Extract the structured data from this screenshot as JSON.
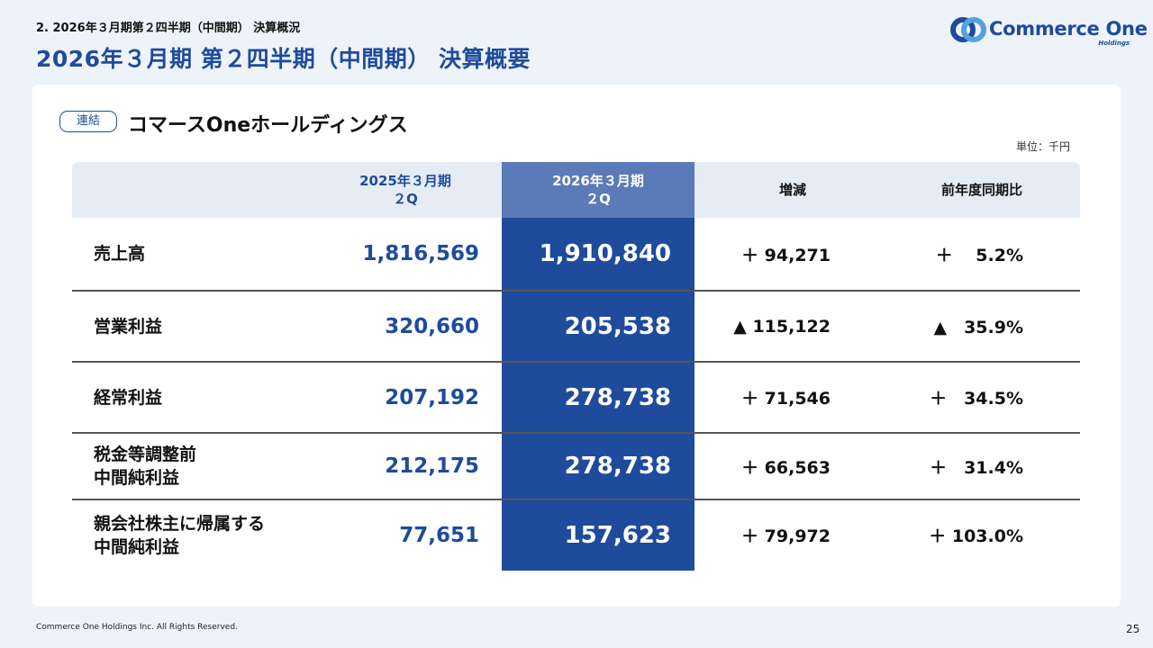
{
  "header": {
    "breadcrumb": "2. 2026年３月期第２四半期（中間期） 決算概況",
    "title": "2026年３月期 第２四半期（中間期） 決算概要",
    "logo_text": "Commerce One",
    "logo_sub": "Holdings"
  },
  "section": {
    "badge": "連結",
    "company": "コマースOneホールディングス",
    "unit": "単位：千円"
  },
  "table": {
    "headers": {
      "prev": [
        "2025年３月期",
        "２Q"
      ],
      "cur": [
        "2026年３月期",
        "２Q"
      ],
      "diff": "増減",
      "ratio": "前年度同期比"
    },
    "rows": [
      {
        "label": [
          "売上高"
        ],
        "prev": "1,816,569",
        "cur": "1,910,840",
        "diff": "＋ 94,271",
        "ratio": "＋　 5.2%"
      },
      {
        "label": [
          "営業利益"
        ],
        "prev": "320,660",
        "cur": "205,538",
        "diff": "▲ 115,122",
        "ratio": "▲　35.9%"
      },
      {
        "label": [
          "経常利益"
        ],
        "prev": "207,192",
        "cur": "278,738",
        "diff": "＋ 71,546",
        "ratio": "＋　34.5%"
      },
      {
        "label": [
          "税金等調整前",
          "中間純利益"
        ],
        "prev": "212,175",
        "cur": "278,738",
        "diff": "＋ 66,563",
        "ratio": "＋　31.4%"
      },
      {
        "label": [
          "親会社株主に帰属する",
          "中間純利益"
        ],
        "prev": "77,651",
        "cur": "157,623",
        "diff": "＋ 79,972",
        "ratio": "＋ 103.0%"
      }
    ]
  },
  "footer": {
    "copyright": "Commerce One Holdings Inc. All Rights Reserved.",
    "page": "25"
  },
  "colors": {
    "brand": "#1e4b9c",
    "header_bg": "#e6ecf4",
    "current_header": "#5b7bb8",
    "background": "#eef3f9"
  }
}
